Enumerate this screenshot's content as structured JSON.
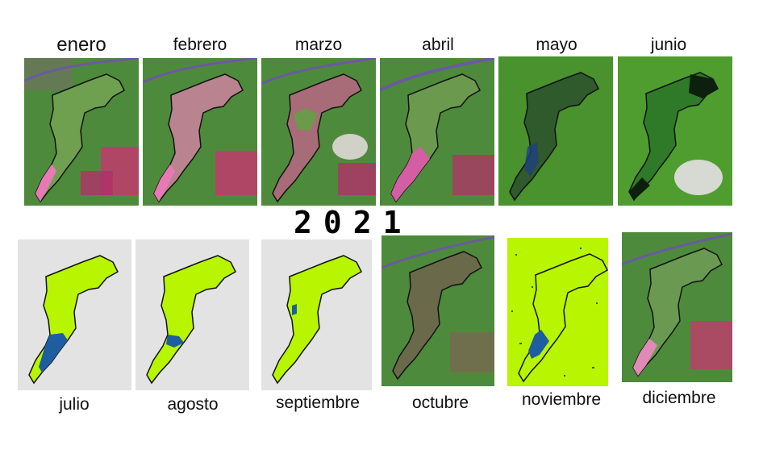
{
  "year": "2021",
  "row1": [
    "enero",
    "febrero",
    "marzo",
    "abril",
    "mayo",
    "junio"
  ],
  "row2": [
    "julio",
    "agosto",
    "septiembre",
    "octubre",
    "noviembre",
    "diciembre"
  ],
  "colors": {
    "satellite_green": "#4f8a3a",
    "lake_green": "#6fa050",
    "lake_pink": "#d86aa6",
    "water_blue": "#1e5ea0",
    "mask_lime": "#b8f500",
    "mask_background": "#e3e3e3",
    "outline": "#111111"
  }
}
